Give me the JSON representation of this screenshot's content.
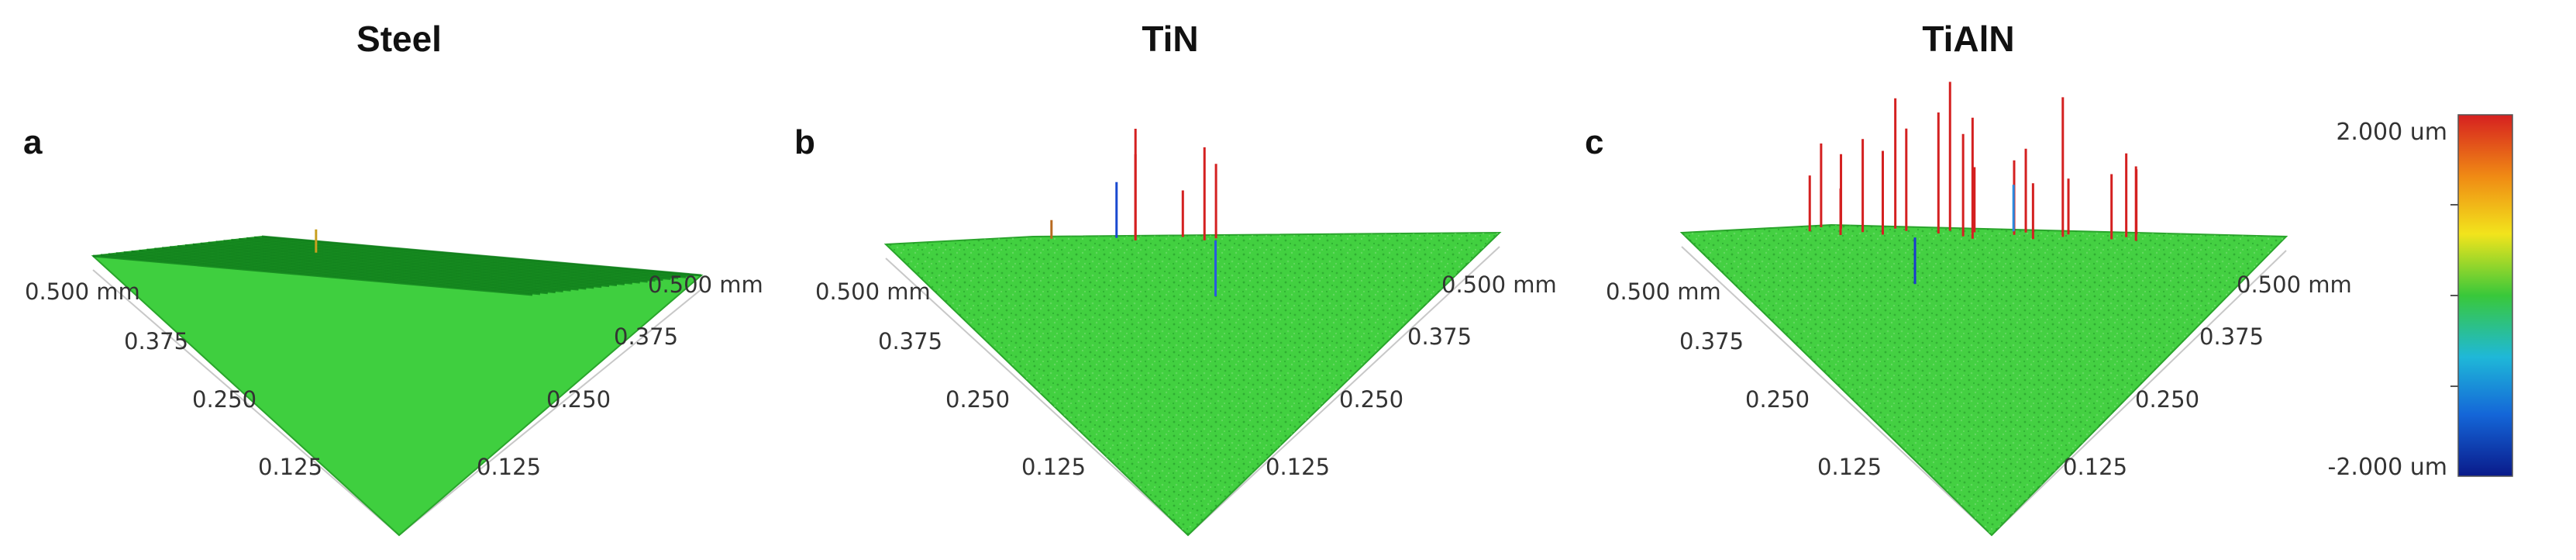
{
  "chart_data": {
    "type": "surface3d",
    "colorbar": {
      "max_label": "2.000 um",
      "min_label": "-2.000 um",
      "colors": [
        "#d62020",
        "#f08a14",
        "#f2e41c",
        "#39c83a",
        "#1fb8d8",
        "#1466d8",
        "#0a1a8a"
      ]
    },
    "panels": [
      {
        "letter": "a",
        "title": "Steel",
        "left_ticks": [
          "0.500 mm",
          "0.375",
          "0.250",
          "0.125"
        ],
        "right_ticks": [
          "0.500 mm",
          "0.375",
          "0.250",
          "0.125"
        ],
        "surface_color": "#3fcf3f",
        "texture": "ridges",
        "spikes": [
          {
            "u": 0.25,
            "v": 0.33,
            "h": 0.25,
            "color": "#c8a020"
          }
        ]
      },
      {
        "letter": "b",
        "title": "TiN",
        "left_ticks": [
          "0.500 mm",
          "0.375",
          "0.250",
          "0.125"
        ],
        "right_ticks": [
          "0.500 mm",
          "0.375",
          "0.250",
          "0.125"
        ],
        "surface_color": "#42d040",
        "texture": "noise",
        "spikes": [
          {
            "u": 0.28,
            "v": 0.32,
            "h": 0.6,
            "color": "#1a4ad0"
          },
          {
            "u": 0.33,
            "v": 0.35,
            "h": 0.9,
            "color": "#d42020"
          },
          {
            "u": 0.4,
            "v": 0.25,
            "h": 0.5,
            "color": "#d42020"
          },
          {
            "u": 0.55,
            "v": 0.5,
            "h": 0.8,
            "color": "#d42020"
          },
          {
            "u": 0.45,
            "v": 0.73,
            "h": 1.2,
            "color": "#d42020"
          },
          {
            "u": 0.62,
            "v": 0.8,
            "h": 1.0,
            "color": "#d42020"
          },
          {
            "u": 0.65,
            "v": 0.82,
            "h": -0.6,
            "color": "#2a5ae0"
          },
          {
            "u": 0.15,
            "v": 0.35,
            "h": 0.2,
            "color": "#b86a20"
          }
        ]
      },
      {
        "letter": "c",
        "title": "TiAlN",
        "left_ticks": [
          "0.500 mm",
          "0.375",
          "0.250",
          "0.125"
        ],
        "right_ticks": [
          "0.500 mm",
          "0.375",
          "0.250",
          "0.125"
        ],
        "surface_color": "#44d042",
        "texture": "noise",
        "spikes": [
          {
            "u": 0.2,
            "v": 0.18,
            "h": 1.4,
            "color": "#d42020"
          },
          {
            "u": 0.05,
            "v": 0.22,
            "h": 0.9,
            "color": "#d42020"
          },
          {
            "u": 0.34,
            "v": 0.24,
            "h": 1.6,
            "color": "#d42020"
          },
          {
            "u": 0.12,
            "v": 0.3,
            "h": 0.8,
            "color": "#d42020"
          },
          {
            "u": 0.28,
            "v": 0.35,
            "h": 1.1,
            "color": "#d42020"
          },
          {
            "u": 0.42,
            "v": 0.32,
            "h": 0.7,
            "color": "#d42020"
          },
          {
            "u": 0.5,
            "v": 0.22,
            "h": 0.9,
            "color": "#d42020"
          },
          {
            "u": 0.62,
            "v": 0.3,
            "h": 0.6,
            "color": "#d42020"
          },
          {
            "u": 0.25,
            "v": 0.55,
            "h": 1.0,
            "color": "#d42020"
          },
          {
            "u": 0.4,
            "v": 0.5,
            "h": 1.3,
            "color": "#d42020"
          },
          {
            "u": 0.55,
            "v": 0.45,
            "h": 0.8,
            "color": "#d42020"
          },
          {
            "u": 0.68,
            "v": 0.52,
            "h": 1.5,
            "color": "#d42020"
          },
          {
            "u": 0.78,
            "v": 0.4,
            "h": 0.9,
            "color": "#d42020"
          },
          {
            "u": 0.82,
            "v": 0.62,
            "h": 0.7,
            "color": "#d42020"
          },
          {
            "u": 0.35,
            "v": 0.72,
            "h": 0.9,
            "color": "#d42020"
          },
          {
            "u": 0.52,
            "v": 0.7,
            "h": 1.1,
            "color": "#d42020"
          },
          {
            "u": 0.7,
            "v": 0.78,
            "h": 0.6,
            "color": "#d42020"
          },
          {
            "u": 0.6,
            "v": 0.88,
            "h": 1.3,
            "color": "#d42020"
          },
          {
            "u": 0.48,
            "v": 0.9,
            "h": -0.5,
            "color": "#1a3ad0"
          },
          {
            "u": 0.9,
            "v": 0.7,
            "h": 0.8,
            "color": "#d42020"
          },
          {
            "u": 0.15,
            "v": 0.6,
            "h": 0.6,
            "color": "#d42020"
          },
          {
            "u": 0.45,
            "v": 0.15,
            "h": 0.5,
            "color": "#2a8ae0"
          },
          {
            "u": 0.72,
            "v": 0.15,
            "h": 0.7,
            "color": "#d42020"
          },
          {
            "u": 0.3,
            "v": 0.85,
            "h": 0.5,
            "color": "#d42020"
          }
        ]
      }
    ]
  }
}
